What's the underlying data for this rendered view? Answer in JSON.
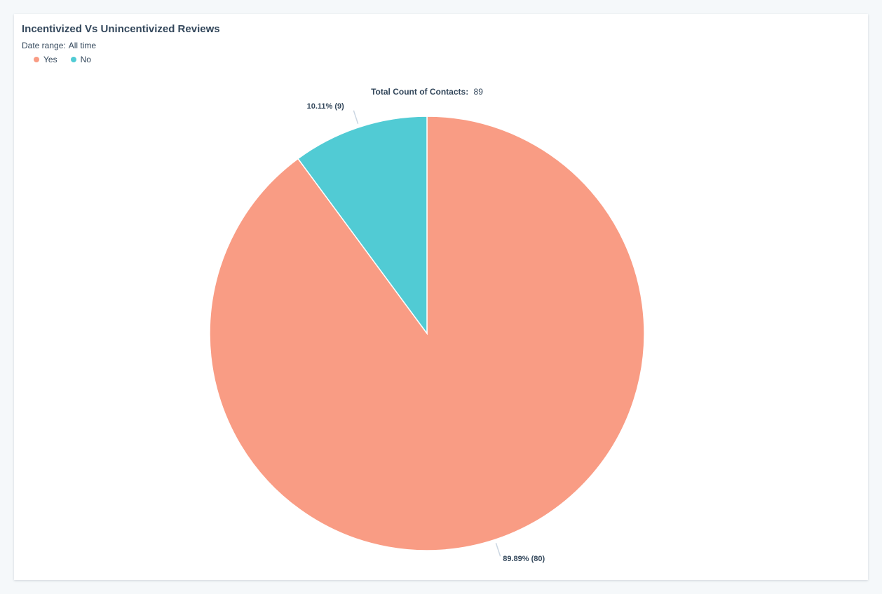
{
  "header": {
    "title": "Incentivized Vs Unincentivized Reviews",
    "date_range_label": "Date range:",
    "date_range_value": "All time"
  },
  "legend": [
    {
      "label": "Yes",
      "color": "#f99c84"
    },
    {
      "label": "No",
      "color": "#51cbd4"
    }
  ],
  "total": {
    "label": "Total Count of Contacts:",
    "value": "89"
  },
  "chart_data": {
    "type": "pie",
    "title": "Incentivized Vs Unincentivized Reviews",
    "total": 89,
    "slices": [
      {
        "name": "Yes",
        "value": 80,
        "percent": 89.89,
        "label": "89.89% (80)",
        "color": "#f99c84"
      },
      {
        "name": "No",
        "value": 9,
        "percent": 10.11,
        "label": "10.11% (9)",
        "color": "#51cbd4"
      }
    ],
    "legend_position": "top-left"
  }
}
